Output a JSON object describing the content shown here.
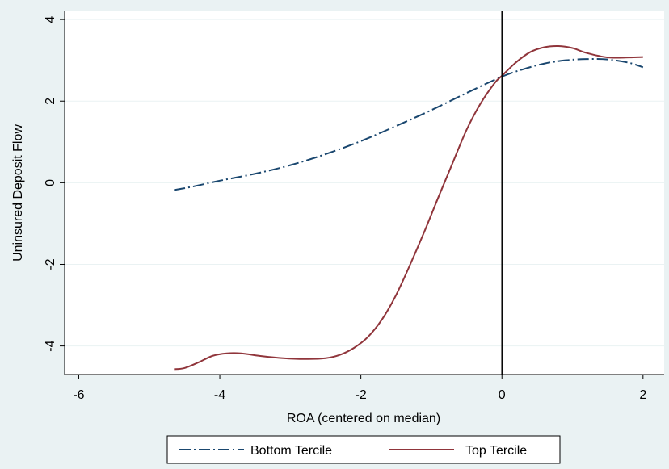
{
  "chart_data": {
    "type": "line",
    "title": "",
    "xlabel": "ROA (centered on median)",
    "ylabel": "Uninsured Deposit Flow",
    "xlim": [
      -6.2,
      2.3
    ],
    "ylim": [
      -4.7,
      4.2
    ],
    "xticks": [
      -6,
      -4,
      -2,
      0,
      2
    ],
    "yticks": [
      -4,
      -2,
      0,
      2,
      4
    ],
    "xtick_labels": [
      "-6",
      "-4",
      "-2",
      "0",
      "2"
    ],
    "ytick_labels": [
      "-4",
      "-2",
      "0",
      "2",
      "4"
    ],
    "grid": "horizontal",
    "vline_x": 0,
    "legend_position": "bottom",
    "series": [
      {
        "name": "Bottom Tercile",
        "color": "#1a476f",
        "dash": "dash-dot",
        "x": [
          -4.65,
          -4.4,
          -4.0,
          -3.5,
          -3.0,
          -2.5,
          -2.0,
          -1.5,
          -1.0,
          -0.5,
          0.0,
          0.3,
          0.6,
          0.9,
          1.2,
          1.5,
          1.8,
          2.0
        ],
        "y": [
          -0.18,
          -0.1,
          0.05,
          0.22,
          0.43,
          0.7,
          1.02,
          1.39,
          1.78,
          2.2,
          2.6,
          2.78,
          2.92,
          3.0,
          3.03,
          3.02,
          2.94,
          2.83
        ]
      },
      {
        "name": "Top Tercile",
        "color": "#90353b",
        "dash": "solid",
        "x": [
          -4.65,
          -4.5,
          -4.3,
          -4.1,
          -3.9,
          -3.7,
          -3.4,
          -3.1,
          -2.8,
          -2.5,
          -2.3,
          -2.1,
          -1.9,
          -1.7,
          -1.5,
          -1.3,
          -1.1,
          -0.9,
          -0.7,
          -0.5,
          -0.3,
          -0.1,
          0.0,
          0.2,
          0.4,
          0.6,
          0.8,
          1.0,
          1.2,
          1.5,
          1.8,
          2.0
        ],
        "y": [
          -4.57,
          -4.54,
          -4.4,
          -4.24,
          -4.18,
          -4.18,
          -4.25,
          -4.3,
          -4.32,
          -4.3,
          -4.22,
          -4.05,
          -3.78,
          -3.35,
          -2.75,
          -2.0,
          -1.2,
          -0.35,
          0.48,
          1.3,
          1.95,
          2.45,
          2.62,
          2.95,
          3.2,
          3.32,
          3.35,
          3.3,
          3.18,
          3.07,
          3.07,
          3.08
        ]
      }
    ]
  }
}
